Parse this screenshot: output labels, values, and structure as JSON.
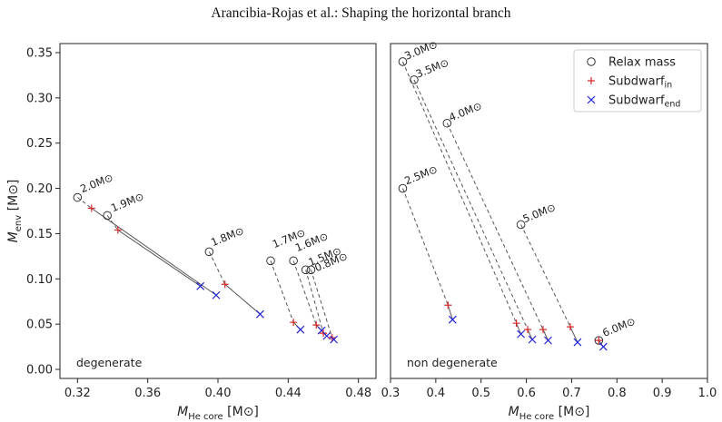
{
  "header": {
    "running_title": "Arancibia-Rojas et al.: Shaping the horizontal branch"
  },
  "legend": {
    "position": "top-right of right panel",
    "entries": [
      {
        "marker": "open-circle",
        "label": "Relax mass",
        "color": "#333333"
      },
      {
        "marker": "plus",
        "label": "Subdwarf",
        "subscript": "in",
        "color": "#d62728"
      },
      {
        "marker": "cross",
        "label": "Subdwarf",
        "subscript": "end",
        "color": "#1f1fd6"
      }
    ]
  },
  "chart_data": [
    {
      "type": "scatter",
      "panel": "left",
      "corner_label": "degenerate",
      "ylabel": "M_env [M⊙]",
      "xlabel": "M_He core [M⊙]",
      "xlim": [
        0.31,
        0.49
      ],
      "ylim": [
        -0.01,
        0.36
      ],
      "xticks": [
        0.32,
        0.36,
        0.4,
        0.44,
        0.48
      ],
      "xtick_labels": [
        "0.32",
        "0.36",
        "0.40",
        "0.44",
        "0.48"
      ],
      "yticks": [
        0.0,
        0.05,
        0.1,
        0.15,
        0.2,
        0.25,
        0.3,
        0.35
      ],
      "ytick_labels": [
        "0.00",
        "0.05",
        "0.10",
        "0.15",
        "0.20",
        "0.25",
        "0.30",
        "0.35"
      ],
      "grid": false,
      "tracks": [
        {
          "label": "2.0M⊙",
          "relax": [
            0.32,
            0.19
          ],
          "in": [
            0.328,
            0.178
          ],
          "end": [
            0.399,
            0.082
          ]
        },
        {
          "label": "1.9M⊙",
          "relax": [
            0.337,
            0.17
          ],
          "in": [
            0.343,
            0.154
          ],
          "end": [
            0.39,
            0.092
          ]
        },
        {
          "label": "1.8M⊙",
          "relax": [
            0.395,
            0.13
          ],
          "in": [
            0.404,
            0.094
          ],
          "end": [
            0.424,
            0.061
          ]
        },
        {
          "label": "1.7M⊙",
          "relax": [
            0.43,
            0.12
          ],
          "in": [
            0.443,
            0.052
          ],
          "end": [
            0.447,
            0.044
          ]
        },
        {
          "label": "1.6M⊙",
          "relax": [
            0.443,
            0.12
          ],
          "in": [
            0.456,
            0.049
          ],
          "end": [
            0.459,
            0.043
          ]
        },
        {
          "label": "1.5M⊙",
          "relax": [
            0.45,
            0.11
          ],
          "in": [
            0.46,
            0.04
          ],
          "end": [
            0.462,
            0.037
          ]
        },
        {
          "label": "0.8M⊙",
          "relax": [
            0.453,
            0.11
          ],
          "in": [
            0.465,
            0.035
          ],
          "end": [
            0.466,
            0.033
          ]
        }
      ]
    },
    {
      "type": "scatter",
      "panel": "right",
      "corner_label": "non degenerate",
      "xlabel": "M_He core [M⊙]",
      "xlim": [
        0.3,
        1.0
      ],
      "ylim": [
        -0.01,
        0.36
      ],
      "xticks": [
        0.3,
        0.4,
        0.5,
        0.6,
        0.7,
        0.8,
        0.9,
        1.0
      ],
      "xtick_labels": [
        "0.3",
        "0.4",
        "0.5",
        "0.6",
        "0.7",
        "0.8",
        "0.9",
        "1.0"
      ],
      "grid": false,
      "tracks": [
        {
          "label": "3.0M⊙",
          "relax": [
            0.327,
            0.34
          ],
          "in": [
            0.578,
            0.051
          ],
          "end": [
            0.588,
            0.039
          ]
        },
        {
          "label": "3.5M⊙",
          "relax": [
            0.352,
            0.32
          ],
          "in": [
            0.603,
            0.044
          ],
          "end": [
            0.613,
            0.033
          ]
        },
        {
          "label": "4.0M⊙",
          "relax": [
            0.425,
            0.272
          ],
          "in": [
            0.637,
            0.044
          ],
          "end": [
            0.648,
            0.032
          ]
        },
        {
          "label": "2.5M⊙",
          "relax": [
            0.327,
            0.2
          ],
          "in": [
            0.427,
            0.071
          ],
          "end": [
            0.437,
            0.055
          ]
        },
        {
          "label": "5.0M⊙",
          "relax": [
            0.588,
            0.16
          ],
          "in": [
            0.697,
            0.047
          ],
          "end": [
            0.713,
            0.03
          ]
        },
        {
          "label": "6.0M⊙",
          "relax": [
            0.76,
            0.032
          ],
          "in": [
            0.76,
            0.032
          ],
          "end": [
            0.77,
            0.025
          ]
        }
      ]
    }
  ]
}
